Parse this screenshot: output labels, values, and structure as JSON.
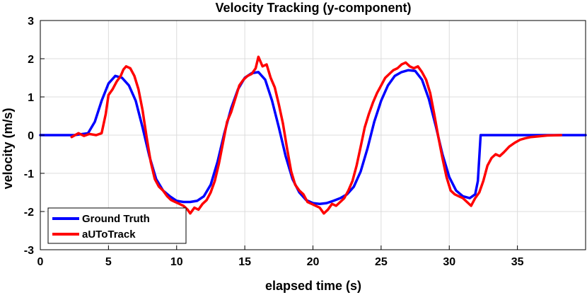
{
  "chart_data": {
    "type": "line",
    "title": "Velocity Tracking (y-component)",
    "xlabel": "elapsed time (s)",
    "ylabel": "velocity (m/s)",
    "xlim": [
      0,
      40
    ],
    "ylim": [
      -3,
      3
    ],
    "xticks": [
      0,
      5,
      10,
      15,
      20,
      25,
      30,
      35
    ],
    "yticks": [
      -3,
      -2,
      -1,
      0,
      1,
      2,
      3
    ],
    "grid": true,
    "legend_position": "bottom-left",
    "series": [
      {
        "name": "Ground Truth",
        "color": "#0000ff",
        "x": [
          0,
          2.5,
          3.5,
          4.0,
          4.5,
          5.0,
          5.5,
          6.0,
          6.5,
          7.0,
          7.5,
          8.0,
          8.5,
          9.0,
          9.5,
          10.0,
          10.5,
          11.0,
          11.5,
          12.0,
          12.5,
          13.0,
          13.5,
          14.0,
          14.5,
          15.0,
          15.5,
          16.0,
          16.5,
          17.0,
          17.5,
          18.0,
          18.5,
          19.0,
          19.5,
          20.0,
          20.5,
          21.0,
          21.5,
          22.0,
          22.5,
          23.0,
          23.5,
          24.0,
          24.5,
          25.0,
          25.5,
          26.0,
          26.5,
          27.0,
          27.5,
          28.0,
          28.5,
          29.0,
          29.5,
          30.0,
          30.5,
          31.0,
          31.5,
          31.9,
          32.1,
          32.3,
          33,
          36,
          40
        ],
        "y": [
          0,
          0,
          0.05,
          0.35,
          0.9,
          1.35,
          1.55,
          1.5,
          1.3,
          0.9,
          0.2,
          -0.55,
          -1.15,
          -1.45,
          -1.6,
          -1.72,
          -1.75,
          -1.75,
          -1.72,
          -1.6,
          -1.3,
          -0.7,
          0.05,
          0.7,
          1.2,
          1.5,
          1.62,
          1.65,
          1.45,
          0.9,
          0.2,
          -0.55,
          -1.15,
          -1.5,
          -1.7,
          -1.78,
          -1.8,
          -1.78,
          -1.72,
          -1.65,
          -1.55,
          -1.35,
          -0.95,
          -0.35,
          0.35,
          0.9,
          1.3,
          1.55,
          1.65,
          1.7,
          1.68,
          1.45,
          0.95,
          0.25,
          -0.5,
          -1.1,
          -1.45,
          -1.6,
          -1.65,
          -1.55,
          -1.2,
          0,
          0,
          0,
          0
        ]
      },
      {
        "name": "aUToTrack",
        "color": "#ff0000",
        "x": [
          2.3,
          2.8,
          3.2,
          3.6,
          4.1,
          4.5,
          4.8,
          5.0,
          5.3,
          5.6,
          5.9,
          6.1,
          6.3,
          6.6,
          6.9,
          7.2,
          7.5,
          7.8,
          8.1,
          8.4,
          8.7,
          9.0,
          9.3,
          9.6,
          9.9,
          10.2,
          10.5,
          10.8,
          11.0,
          11.3,
          11.6,
          11.9,
          12.2,
          12.5,
          12.8,
          13.1,
          13.4,
          13.7,
          14.0,
          14.3,
          14.6,
          14.9,
          15.2,
          15.5,
          15.8,
          16.0,
          16.3,
          16.6,
          16.9,
          17.2,
          17.5,
          17.8,
          18.1,
          18.4,
          18.7,
          19.0,
          19.3,
          19.6,
          19.9,
          20.2,
          20.5,
          20.8,
          21.1,
          21.4,
          21.7,
          22.0,
          22.3,
          22.6,
          22.9,
          23.2,
          23.5,
          23.8,
          24.1,
          24.4,
          24.7,
          25.0,
          25.3,
          25.6,
          25.9,
          26.2,
          26.5,
          26.8,
          27.1,
          27.4,
          27.7,
          28.0,
          28.3,
          28.6,
          28.9,
          29.2,
          29.5,
          29.8,
          30.1,
          30.4,
          30.7,
          31.0,
          31.3,
          31.6,
          31.9,
          32.2,
          32.5,
          32.8,
          33.1,
          33.4,
          33.7,
          34.0,
          34.4,
          34.8,
          35.2,
          35.6,
          36.0,
          36.6,
          37.2,
          38.2
        ],
        "y": [
          -0.05,
          0.05,
          -0.02,
          0.03,
          0.0,
          0.05,
          0.55,
          1.05,
          1.2,
          1.4,
          1.55,
          1.72,
          1.8,
          1.75,
          1.55,
          1.2,
          0.65,
          -0.05,
          -0.7,
          -1.15,
          -1.35,
          -1.45,
          -1.6,
          -1.7,
          -1.75,
          -1.8,
          -1.85,
          -1.95,
          -2.05,
          -1.9,
          -1.95,
          -1.8,
          -1.7,
          -1.5,
          -1.2,
          -0.75,
          -0.2,
          0.35,
          0.6,
          0.95,
          1.3,
          1.45,
          1.55,
          1.6,
          1.75,
          2.05,
          1.8,
          1.85,
          1.5,
          1.25,
          0.8,
          0.3,
          -0.35,
          -0.95,
          -1.3,
          -1.45,
          -1.55,
          -1.75,
          -1.8,
          -1.85,
          -1.9,
          -2.05,
          -1.95,
          -1.8,
          -1.85,
          -1.75,
          -1.65,
          -1.45,
          -1.2,
          -0.8,
          -0.3,
          0.2,
          0.55,
          0.85,
          1.1,
          1.3,
          1.5,
          1.6,
          1.7,
          1.75,
          1.85,
          1.9,
          1.8,
          1.75,
          1.8,
          1.65,
          1.45,
          1.1,
          0.55,
          -0.05,
          -0.6,
          -1.1,
          -1.45,
          -1.55,
          -1.6,
          -1.65,
          -1.75,
          -1.85,
          -1.65,
          -1.5,
          -1.2,
          -0.8,
          -0.6,
          -0.5,
          -0.55,
          -0.45,
          -0.3,
          -0.2,
          -0.12,
          -0.08,
          -0.05,
          -0.03,
          -0.01,
          0
        ]
      }
    ]
  }
}
